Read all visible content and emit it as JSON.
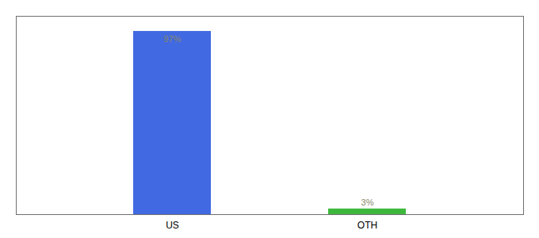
{
  "chart_data": {
    "type": "bar",
    "categories": [
      "US",
      "OTH"
    ],
    "values": [
      97,
      3
    ],
    "value_labels": [
      "97%",
      "3%"
    ],
    "colors": [
      "#4169e1",
      "#3db83d"
    ],
    "ylim": [
      0,
      105
    ],
    "data_labels": true,
    "tick_labels": "x"
  }
}
